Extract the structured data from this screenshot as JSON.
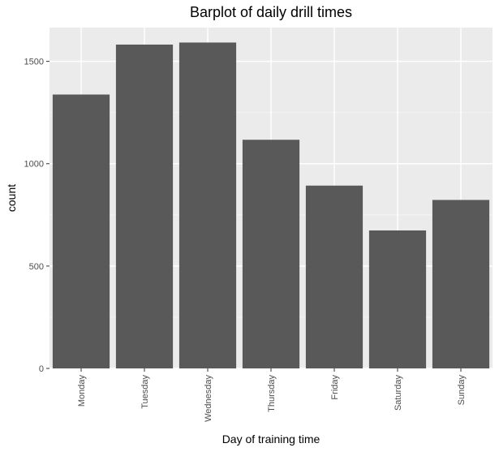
{
  "chart_data": {
    "type": "bar",
    "title": "Barplot of daily drill times",
    "xlabel": "Day of training time",
    "ylabel": "count",
    "categories": [
      "Monday",
      "Tuesday",
      "Wednesday",
      "Thursday",
      "Friday",
      "Saturday",
      "Sunday"
    ],
    "values": [
      1338,
      1582,
      1592,
      1117,
      893,
      674,
      823
    ],
    "ylim": [
      0,
      1665
    ],
    "yticks": [
      0,
      500,
      1000,
      1500
    ],
    "ytick_labels": [
      "0",
      "500",
      "1000",
      "1500"
    ],
    "grid": true,
    "legend": "none",
    "colors": {
      "bar": "#595959",
      "panel": "#ebebeb",
      "grid_major": "#ffffff",
      "grid_minor": "#f5f5f5",
      "tick": "#333333"
    }
  }
}
